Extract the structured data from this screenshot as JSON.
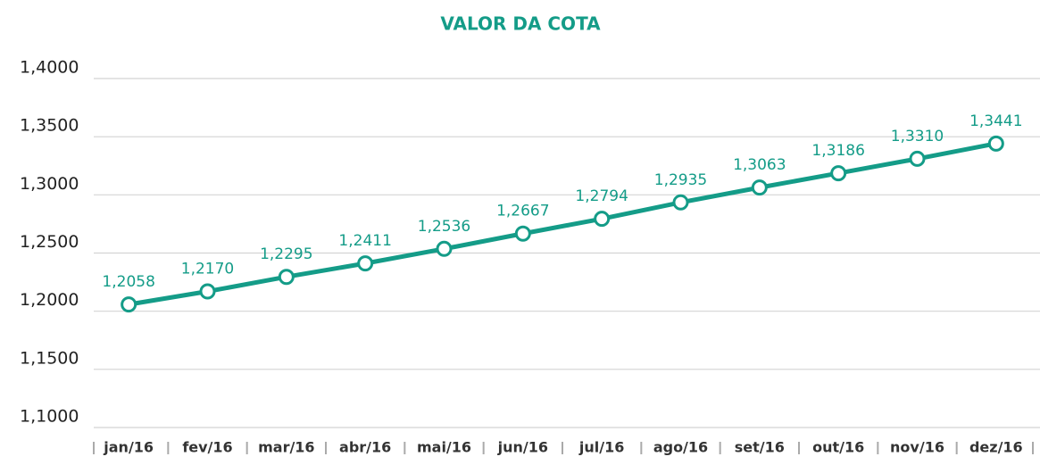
{
  "chart_data": {
    "type": "line",
    "title": "VALOR DA COTA",
    "categories": [
      "jan/16",
      "fev/16",
      "mar/16",
      "abr/16",
      "mai/16",
      "jun/16",
      "jul/16",
      "ago/16",
      "set/16",
      "out/16",
      "nov/16",
      "dez/16"
    ],
    "series": [
      {
        "name": "Valor da cota",
        "color": "#149c88",
        "values": [
          1.2058,
          1.217,
          1.2295,
          1.2411,
          1.2536,
          1.2667,
          1.2794,
          1.2935,
          1.3063,
          1.3186,
          1.331,
          1.3441
        ],
        "value_labels": [
          "1,2058",
          "1,2170",
          "1,2295",
          "1,2411",
          "1,2536",
          "1,2667",
          "1,2794",
          "1,2935",
          "1,3063",
          "1,3186",
          "1,3310",
          "1,3441"
        ]
      }
    ],
    "ylim": [
      1.1,
      1.4
    ],
    "yticks": [
      {
        "value": 1.1,
        "label": "1,1000"
      },
      {
        "value": 1.15,
        "label": "1,1500"
      },
      {
        "value": 1.2,
        "label": "1,2000"
      },
      {
        "value": 1.25,
        "label": "1,2500"
      },
      {
        "value": 1.3,
        "label": "1,3000"
      },
      {
        "value": 1.35,
        "label": "1,3500"
      },
      {
        "value": 1.4,
        "label": "1,4000"
      }
    ],
    "grid": true
  }
}
